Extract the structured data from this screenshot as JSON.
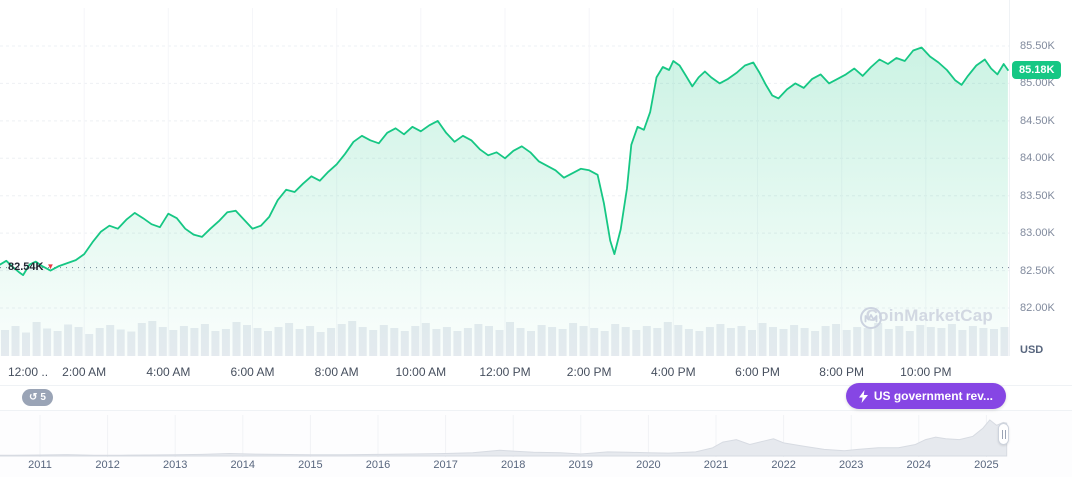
{
  "colors": {
    "green": "#16C784",
    "red": "#EA3943",
    "purple": "#8646E4",
    "volume_bar": "#e8ebf1",
    "grid": "#eef0f4",
    "timeline_fill": "#e6e9ee",
    "timeline_stroke": "#d7dbe2",
    "axis_text": "#808a9d"
  },
  "watermark": {
    "text": "CoinMarketCap"
  },
  "axis": {
    "currency_label": "USD"
  },
  "open_price": {
    "label": "82.54K",
    "value": 82.54
  },
  "current_price": {
    "label": "85.18K",
    "value": 85.18
  },
  "badges": {
    "history_count": "5",
    "event_label": "US government rev..."
  },
  "chart_data": {
    "type": "line",
    "y_range": [
      82.0,
      85.5
    ],
    "x_range_hours": [
      0,
      24
    ],
    "y_ticks": [
      {
        "value": 85.5,
        "label": "85.50K"
      },
      {
        "value": 85.0,
        "label": "85.00K"
      },
      {
        "value": 84.5,
        "label": "84.50K"
      },
      {
        "value": 84.0,
        "label": "84.00K"
      },
      {
        "value": 83.5,
        "label": "83.50K"
      },
      {
        "value": 83.0,
        "label": "83.00K"
      },
      {
        "value": 82.5,
        "label": "82.50K"
      },
      {
        "value": 82.0,
        "label": "82.00K"
      }
    ],
    "x_ticks": [
      {
        "hour": 0,
        "label": "12:00 .."
      },
      {
        "hour": 2,
        "label": "2:00 AM"
      },
      {
        "hour": 4,
        "label": "4:00 AM"
      },
      {
        "hour": 6,
        "label": "6:00 AM"
      },
      {
        "hour": 8,
        "label": "8:00 AM"
      },
      {
        "hour": 10,
        "label": "10:00 AM"
      },
      {
        "hour": 12,
        "label": "12:00 PM"
      },
      {
        "hour": 14,
        "label": "2:00 PM"
      },
      {
        "hour": 16,
        "label": "4:00 PM"
      },
      {
        "hour": 18,
        "label": "6:00 PM"
      },
      {
        "hour": 20,
        "label": "8:00 PM"
      },
      {
        "hour": 22,
        "label": "10:00 PM"
      }
    ],
    "series": [
      {
        "name": "price",
        "points": [
          [
            0.0,
            82.58
          ],
          [
            0.15,
            82.63
          ],
          [
            0.3,
            82.55
          ],
          [
            0.45,
            82.48
          ],
          [
            0.55,
            82.44
          ],
          [
            0.7,
            82.58
          ],
          [
            0.85,
            82.62
          ],
          [
            1.0,
            82.56
          ],
          [
            1.2,
            82.5
          ],
          [
            1.4,
            82.56
          ],
          [
            1.6,
            82.6
          ],
          [
            1.8,
            82.64
          ],
          [
            2.0,
            82.72
          ],
          [
            2.2,
            82.88
          ],
          [
            2.4,
            83.02
          ],
          [
            2.6,
            83.1
          ],
          [
            2.8,
            83.06
          ],
          [
            3.0,
            83.18
          ],
          [
            3.2,
            83.27
          ],
          [
            3.4,
            83.2
          ],
          [
            3.6,
            83.12
          ],
          [
            3.8,
            83.08
          ],
          [
            4.0,
            83.26
          ],
          [
            4.2,
            83.2
          ],
          [
            4.4,
            83.06
          ],
          [
            4.6,
            82.98
          ],
          [
            4.8,
            82.95
          ],
          [
            5.0,
            83.06
          ],
          [
            5.2,
            83.16
          ],
          [
            5.4,
            83.28
          ],
          [
            5.6,
            83.3
          ],
          [
            5.8,
            83.18
          ],
          [
            6.0,
            83.06
          ],
          [
            6.2,
            83.1
          ],
          [
            6.4,
            83.22
          ],
          [
            6.6,
            83.44
          ],
          [
            6.8,
            83.58
          ],
          [
            7.0,
            83.55
          ],
          [
            7.2,
            83.66
          ],
          [
            7.4,
            83.76
          ],
          [
            7.6,
            83.7
          ],
          [
            7.8,
            83.82
          ],
          [
            8.0,
            83.92
          ],
          [
            8.2,
            84.06
          ],
          [
            8.4,
            84.22
          ],
          [
            8.6,
            84.3
          ],
          [
            8.8,
            84.24
          ],
          [
            9.0,
            84.2
          ],
          [
            9.2,
            84.34
          ],
          [
            9.4,
            84.4
          ],
          [
            9.6,
            84.32
          ],
          [
            9.8,
            84.42
          ],
          [
            10.0,
            84.36
          ],
          [
            10.2,
            84.44
          ],
          [
            10.4,
            84.5
          ],
          [
            10.6,
            84.34
          ],
          [
            10.8,
            84.22
          ],
          [
            11.0,
            84.3
          ],
          [
            11.2,
            84.24
          ],
          [
            11.4,
            84.12
          ],
          [
            11.6,
            84.04
          ],
          [
            11.8,
            84.08
          ],
          [
            12.0,
            84.0
          ],
          [
            12.2,
            84.1
          ],
          [
            12.4,
            84.16
          ],
          [
            12.6,
            84.08
          ],
          [
            12.8,
            83.96
          ],
          [
            13.0,
            83.9
          ],
          [
            13.2,
            83.84
          ],
          [
            13.4,
            83.74
          ],
          [
            13.6,
            83.8
          ],
          [
            13.8,
            83.86
          ],
          [
            14.0,
            83.84
          ],
          [
            14.2,
            83.78
          ],
          [
            14.35,
            83.4
          ],
          [
            14.5,
            82.9
          ],
          [
            14.6,
            82.72
          ],
          [
            14.75,
            83.05
          ],
          [
            14.9,
            83.6
          ],
          [
            15.0,
            84.18
          ],
          [
            15.15,
            84.42
          ],
          [
            15.3,
            84.38
          ],
          [
            15.45,
            84.62
          ],
          [
            15.6,
            85.08
          ],
          [
            15.75,
            85.22
          ],
          [
            15.9,
            85.18
          ],
          [
            16.0,
            85.3
          ],
          [
            16.15,
            85.24
          ],
          [
            16.3,
            85.1
          ],
          [
            16.45,
            84.96
          ],
          [
            16.6,
            85.08
          ],
          [
            16.75,
            85.16
          ],
          [
            16.9,
            85.08
          ],
          [
            17.1,
            85.0
          ],
          [
            17.3,
            85.06
          ],
          [
            17.5,
            85.14
          ],
          [
            17.7,
            85.24
          ],
          [
            17.9,
            85.28
          ],
          [
            18.05,
            85.14
          ],
          [
            18.2,
            84.98
          ],
          [
            18.35,
            84.84
          ],
          [
            18.5,
            84.8
          ],
          [
            18.7,
            84.92
          ],
          [
            18.9,
            85.0
          ],
          [
            19.1,
            84.94
          ],
          [
            19.3,
            85.06
          ],
          [
            19.5,
            85.12
          ],
          [
            19.7,
            85.0
          ],
          [
            19.9,
            85.06
          ],
          [
            20.1,
            85.12
          ],
          [
            20.3,
            85.2
          ],
          [
            20.5,
            85.1
          ],
          [
            20.7,
            85.22
          ],
          [
            20.9,
            85.32
          ],
          [
            21.1,
            85.26
          ],
          [
            21.3,
            85.34
          ],
          [
            21.5,
            85.3
          ],
          [
            21.7,
            85.44
          ],
          [
            21.9,
            85.48
          ],
          [
            22.1,
            85.36
          ],
          [
            22.3,
            85.28
          ],
          [
            22.5,
            85.18
          ],
          [
            22.7,
            85.04
          ],
          [
            22.85,
            84.98
          ],
          [
            23.0,
            85.1
          ],
          [
            23.2,
            85.24
          ],
          [
            23.4,
            85.32
          ],
          [
            23.55,
            85.2
          ],
          [
            23.7,
            85.12
          ],
          [
            23.85,
            85.26
          ],
          [
            23.95,
            85.18
          ]
        ]
      }
    ],
    "volume_norm": [
      0.52,
      0.6,
      0.47,
      0.68,
      0.55,
      0.5,
      0.63,
      0.58,
      0.44,
      0.56,
      0.62,
      0.53,
      0.49,
      0.66,
      0.7,
      0.58,
      0.52,
      0.6,
      0.56,
      0.64,
      0.5,
      0.54,
      0.68,
      0.62,
      0.56,
      0.5,
      0.58,
      0.66,
      0.54,
      0.6,
      0.48,
      0.56,
      0.64,
      0.7,
      0.58,
      0.52,
      0.62,
      0.56,
      0.5,
      0.6,
      0.66,
      0.54,
      0.58,
      0.5,
      0.56,
      0.64,
      0.6,
      0.52,
      0.68,
      0.56,
      0.5,
      0.62,
      0.58,
      0.54,
      0.66,
      0.6,
      0.56,
      0.5,
      0.64,
      0.58,
      0.52,
      0.6,
      0.56,
      0.68,
      0.62,
      0.54,
      0.5,
      0.58,
      0.64,
      0.56,
      0.6,
      0.52,
      0.66,
      0.58,
      0.54,
      0.62,
      0.56,
      0.5,
      0.6,
      0.64,
      0.52,
      0.58,
      0.56,
      0.66,
      0.54,
      0.6,
      0.5,
      0.62,
      0.58,
      0.56,
      0.64,
      0.52,
      0.6,
      0.56,
      0.54,
      0.58
    ]
  },
  "timeline": {
    "years": [
      "2011",
      "2012",
      "2013",
      "2014",
      "2015",
      "2016",
      "2017",
      "2018",
      "2019",
      "2020",
      "2021",
      "2022",
      "2023",
      "2024",
      "2025"
    ],
    "points": [
      [
        2010.41,
        0.02
      ],
      [
        2010.6,
        0.02
      ],
      [
        2011.0,
        0.025
      ],
      [
        2011.4,
        0.035
      ],
      [
        2011.8,
        0.02
      ],
      [
        2012.2,
        0.02
      ],
      [
        2012.6,
        0.025
      ],
      [
        2013.0,
        0.03
      ],
      [
        2013.4,
        0.04
      ],
      [
        2013.8,
        0.06
      ],
      [
        2014.1,
        0.05
      ],
      [
        2014.5,
        0.04
      ],
      [
        2015.0,
        0.03
      ],
      [
        2015.5,
        0.03
      ],
      [
        2016.0,
        0.04
      ],
      [
        2016.5,
        0.05
      ],
      [
        2017.0,
        0.06
      ],
      [
        2017.4,
        0.08
      ],
      [
        2017.8,
        0.14
      ],
      [
        2018.0,
        0.12
      ],
      [
        2018.3,
        0.09
      ],
      [
        2018.7,
        0.08
      ],
      [
        2019.0,
        0.05
      ],
      [
        2019.4,
        0.1
      ],
      [
        2019.7,
        0.09
      ],
      [
        2020.0,
        0.08
      ],
      [
        2020.3,
        0.07
      ],
      [
        2020.7,
        0.1
      ],
      [
        2020.95,
        0.2
      ],
      [
        2021.1,
        0.34
      ],
      [
        2021.3,
        0.4
      ],
      [
        2021.5,
        0.28
      ],
      [
        2021.7,
        0.36
      ],
      [
        2021.85,
        0.42
      ],
      [
        2022.0,
        0.32
      ],
      [
        2022.3,
        0.24
      ],
      [
        2022.6,
        0.16
      ],
      [
        2022.9,
        0.13
      ],
      [
        2023.1,
        0.16
      ],
      [
        2023.4,
        0.2
      ],
      [
        2023.7,
        0.2
      ],
      [
        2023.95,
        0.28
      ],
      [
        2024.1,
        0.4
      ],
      [
        2024.25,
        0.46
      ],
      [
        2024.4,
        0.42
      ],
      [
        2024.6,
        0.4
      ],
      [
        2024.8,
        0.48
      ],
      [
        2024.95,
        0.68
      ],
      [
        2025.05,
        0.88
      ],
      [
        2025.15,
        0.75
      ],
      [
        2025.25,
        0.82
      ],
      [
        2025.3,
        0.8
      ]
    ]
  }
}
